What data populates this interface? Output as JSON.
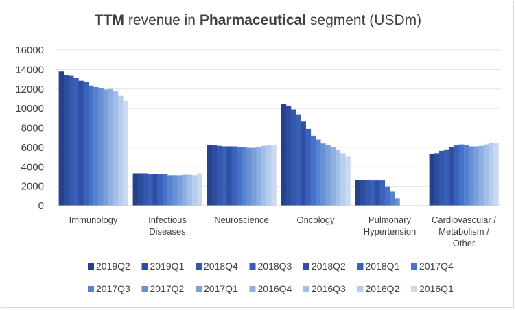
{
  "title": {
    "part1": "TTM",
    "part2": " revenue in ",
    "part3": "Pharmaceutical",
    "part4": " segment (USDm)"
  },
  "chart_data": {
    "type": "bar",
    "title": "TTM revenue in Pharmaceutical segment (USDm)",
    "categories": [
      [
        "Immunology"
      ],
      [
        "Infectious",
        "Diseases"
      ],
      [
        "Neuroscience"
      ],
      [
        "Oncology"
      ],
      [
        "Pulmonary",
        "Hypertension"
      ],
      [
        "Cardiovascular /",
        "Metabolism /",
        "Other"
      ]
    ],
    "ylim": [
      0,
      16000
    ],
    "yticks": [
      "0",
      "2000",
      "4000",
      "6000",
      "8000",
      "10000",
      "12000",
      "14000",
      "16000"
    ],
    "grid": true,
    "legend_position": "bottom",
    "series": [
      {
        "name": "2019Q2",
        "color": "#26408b",
        "values": [
          13800,
          3350,
          6250,
          10450,
          2650,
          5300
        ]
      },
      {
        "name": "2019Q1",
        "color": "#2c4c9c",
        "values": [
          13450,
          3350,
          6200,
          10300,
          2650,
          5400
        ]
      },
      {
        "name": "2018Q4",
        "color": "#3558ad",
        "values": [
          13350,
          3350,
          6150,
          9900,
          2650,
          5650
        ]
      },
      {
        "name": "2018Q3",
        "color": "#3a5fb8",
        "values": [
          13150,
          3300,
          6100,
          9400,
          2600,
          5800
        ]
      },
      {
        "name": "2018Q2",
        "color": "#2f4fa3",
        "values": [
          12850,
          3300,
          6100,
          8650,
          2600,
          6000
        ]
      },
      {
        "name": "2018Q1",
        "color": "#3a62bd",
        "values": [
          12700,
          3300,
          6100,
          7900,
          2600,
          6200
        ]
      },
      {
        "name": "2017Q4",
        "color": "#4672c9",
        "values": [
          12350,
          3250,
          6050,
          7200,
          2000,
          6300
        ]
      },
      {
        "name": "2017Q3",
        "color": "#5682cf",
        "values": [
          12200,
          3150,
          6000,
          6800,
          1450,
          6250
        ]
      },
      {
        "name": "2017Q2",
        "color": "#6890d4",
        "values": [
          12050,
          3150,
          5950,
          6400,
          750,
          6100
        ]
      },
      {
        "name": "2017Q1",
        "color": "#7a9fdb",
        "values": [
          11950,
          3150,
          5950,
          6200,
          0,
          6100
        ]
      },
      {
        "name": "2016Q4",
        "color": "#8dafe1",
        "values": [
          12000,
          3200,
          6050,
          6050,
          0,
          6150
        ]
      },
      {
        "name": "2016Q3",
        "color": "#a2bfe8",
        "values": [
          11800,
          3200,
          6150,
          5750,
          0,
          6300
        ]
      },
      {
        "name": "2016Q2",
        "color": "#b7cdee",
        "values": [
          11300,
          3150,
          6200,
          5400,
          0,
          6500
        ]
      },
      {
        "name": "2016Q1",
        "color": "#cad8f1",
        "values": [
          10800,
          3350,
          6200,
          5050,
          0,
          6450
        ]
      }
    ]
  }
}
